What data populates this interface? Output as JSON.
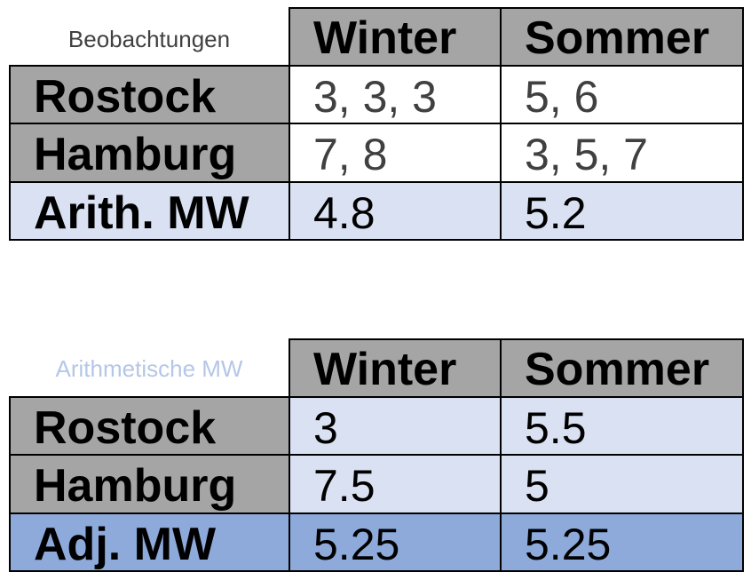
{
  "table1": {
    "corner_label": "Beobachtungen",
    "columns": [
      "Winter",
      "Sommer"
    ],
    "rows": [
      {
        "label": "Rostock",
        "values": [
          "3, 3, 3",
          "5, 6"
        ]
      },
      {
        "label": "Hamburg",
        "values": [
          "7, 8",
          "3, 5, 7"
        ]
      },
      {
        "label": "Arith. MW",
        "values": [
          "4.8",
          "5.2"
        ]
      }
    ]
  },
  "table2": {
    "corner_label": "Arithmetische MW",
    "columns": [
      "Winter",
      "Sommer"
    ],
    "rows": [
      {
        "label": "Rostock",
        "values": [
          "3",
          "5.5"
        ]
      },
      {
        "label": "Hamburg",
        "values": [
          "7.5",
          "5"
        ]
      },
      {
        "label": "Adj. MW",
        "values": [
          "5.25",
          "5.25"
        ]
      }
    ]
  },
  "colors": {
    "header_gray": "#a5a5a5",
    "light_blue": "#d9e1f2",
    "medium_blue": "#8eaadb",
    "corner_label_2": "#b4c7e7",
    "corner_label_1": "#404040"
  }
}
